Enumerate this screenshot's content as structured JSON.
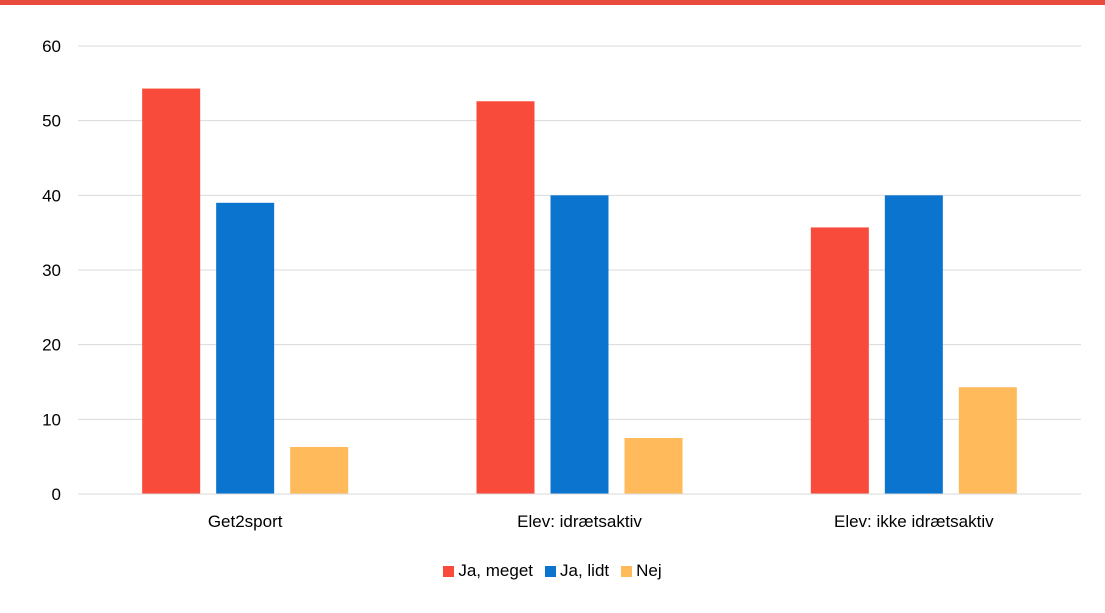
{
  "accent_color": "#e94b3c",
  "chart_data": {
    "type": "bar",
    "title": "",
    "xlabel": "",
    "ylabel": "",
    "categories": [
      "Get2sport",
      "Elev: idrætsaktiv",
      "Elev: ikke idrætsaktiv"
    ],
    "series": [
      {
        "name": "Ja, meget",
        "color": "#f84b3c",
        "values": [
          54.3,
          52.6,
          35.7
        ]
      },
      {
        "name": "Ja, lidt",
        "color": "#0a74ce",
        "values": [
          39.0,
          40.0,
          40.0
        ]
      },
      {
        "name": "Nej",
        "color": "#ffbb5b",
        "values": [
          6.3,
          7.5,
          14.3
        ]
      }
    ],
    "ylim": [
      0,
      60
    ],
    "yticks": [
      0,
      10,
      20,
      30,
      40,
      50,
      60
    ],
    "grid": true,
    "legend_position": "bottom"
  }
}
